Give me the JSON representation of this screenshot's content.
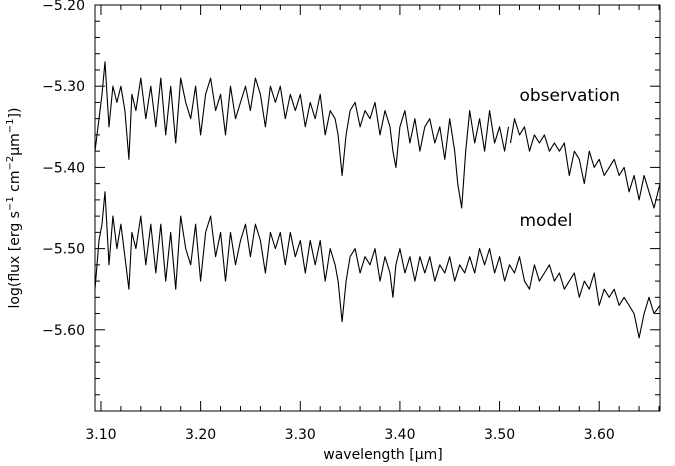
{
  "chart_data": {
    "type": "line",
    "xlabel": "wavelength [μm]",
    "ylabel_parts": [
      "log(flux [erg s",
      "−1",
      " cm",
      "−2",
      "μm",
      "−1",
      "])"
    ],
    "xlim": [
      3.094,
      3.661
    ],
    "ylim": [
      -5.7,
      -5.2
    ],
    "x_ticks": [
      3.1,
      3.2,
      3.3,
      3.4,
      3.5,
      3.6
    ],
    "x_tick_labels": [
      "3.10",
      "3.20",
      "3.30",
      "3.40",
      "3.50",
      "3.60"
    ],
    "y_ticks": [
      -5.2,
      -5.3,
      -5.4,
      -5.5,
      -5.6
    ],
    "y_tick_labels": [
      "−5.20",
      "−5.30",
      "−5.40",
      "−5.50",
      "−5.60"
    ],
    "grid": false,
    "legend": "none",
    "series": [
      {
        "name": "observation",
        "segments": [
          {
            "x": [
              3.094,
              3.098,
              3.101,
              3.104,
              3.108,
              3.112,
              3.116,
              3.12,
              3.124,
              3.128,
              3.131,
              3.135,
              3.14,
              3.145,
              3.15,
              3.155,
              3.16,
              3.165,
              3.17,
              3.175,
              3.18,
              3.185,
              3.19,
              3.195,
              3.2,
              3.205,
              3.21,
              3.215,
              3.22,
              3.225,
              3.23,
              3.235,
              3.24,
              3.245,
              3.25,
              3.255,
              3.26,
              3.265,
              3.27,
              3.275,
              3.28,
              3.285,
              3.29,
              3.295,
              3.3,
              3.305,
              3.31,
              3.315,
              3.32,
              3.325,
              3.33,
              3.335,
              3.338,
              3.342,
              3.346,
              3.35,
              3.355,
              3.36,
              3.365,
              3.37,
              3.375,
              3.38,
              3.385,
              3.39,
              3.393,
              3.396,
              3.4,
              3.405,
              3.41,
              3.415,
              3.42,
              3.425,
              3.43,
              3.435,
              3.44,
              3.445,
              3.45,
              3.455,
              3.458,
              3.462,
              3.466,
              3.47,
              3.475,
              3.48,
              3.485,
              3.49,
              3.495,
              3.5,
              3.505,
              3.509
            ],
            "y": [
              -5.38,
              -5.34,
              -5.31,
              -5.27,
              -5.35,
              -5.3,
              -5.32,
              -5.3,
              -5.33,
              -5.39,
              -5.31,
              -5.33,
              -5.29,
              -5.34,
              -5.3,
              -5.35,
              -5.29,
              -5.36,
              -5.3,
              -5.37,
              -5.29,
              -5.32,
              -5.34,
              -5.3,
              -5.36,
              -5.31,
              -5.29,
              -5.33,
              -5.31,
              -5.36,
              -5.3,
              -5.34,
              -5.32,
              -5.3,
              -5.33,
              -5.29,
              -5.31,
              -5.35,
              -5.3,
              -5.32,
              -5.3,
              -5.34,
              -5.31,
              -5.33,
              -5.31,
              -5.35,
              -5.32,
              -5.34,
              -5.31,
              -5.36,
              -5.33,
              -5.34,
              -5.36,
              -5.41,
              -5.36,
              -5.33,
              -5.32,
              -5.35,
              -5.33,
              -5.34,
              -5.32,
              -5.36,
              -5.33,
              -5.35,
              -5.38,
              -5.4,
              -5.35,
              -5.33,
              -5.37,
              -5.34,
              -5.38,
              -5.35,
              -5.34,
              -5.37,
              -5.35,
              -5.39,
              -5.34,
              -5.38,
              -5.42,
              -5.45,
              -5.38,
              -5.33,
              -5.37,
              -5.34,
              -5.38,
              -5.33,
              -5.37,
              -5.35,
              -5.38,
              -5.35
            ]
          },
          {
            "x": [
              3.511,
              3.515,
              3.52,
              3.525,
              3.53,
              3.535,
              3.54,
              3.545,
              3.55,
              3.555,
              3.56,
              3.565,
              3.57,
              3.575,
              3.58,
              3.585,
              3.59,
              3.595,
              3.6,
              3.605,
              3.61,
              3.615,
              3.62,
              3.625,
              3.63,
              3.635,
              3.64,
              3.645,
              3.65,
              3.655,
              3.661
            ],
            "y": [
              -5.37,
              -5.34,
              -5.36,
              -5.35,
              -5.38,
              -5.36,
              -5.37,
              -5.36,
              -5.38,
              -5.37,
              -5.38,
              -5.37,
              -5.41,
              -5.38,
              -5.39,
              -5.42,
              -5.38,
              -5.4,
              -5.39,
              -5.41,
              -5.4,
              -5.39,
              -5.41,
              -5.4,
              -5.43,
              -5.41,
              -5.44,
              -5.41,
              -5.43,
              -5.45,
              -5.42
            ]
          }
        ]
      },
      {
        "name": "model",
        "segments": [
          {
            "x": [
              3.094,
              3.098,
              3.101,
              3.104,
              3.108,
              3.112,
              3.116,
              3.12,
              3.124,
              3.128,
              3.131,
              3.135,
              3.14,
              3.145,
              3.15,
              3.155,
              3.16,
              3.165,
              3.17,
              3.175,
              3.18,
              3.185,
              3.19,
              3.195,
              3.2,
              3.205,
              3.21,
              3.215,
              3.22,
              3.225,
              3.23,
              3.235,
              3.24,
              3.245,
              3.25,
              3.255,
              3.26,
              3.265,
              3.27,
              3.275,
              3.28,
              3.285,
              3.29,
              3.295,
              3.3,
              3.305,
              3.31,
              3.315,
              3.32,
              3.325,
              3.33,
              3.335,
              3.338,
              3.342,
              3.346,
              3.35,
              3.355,
              3.36,
              3.365,
              3.37,
              3.375,
              3.38,
              3.385,
              3.39,
              3.393,
              3.396,
              3.4,
              3.405,
              3.41,
              3.415,
              3.42,
              3.425,
              3.43,
              3.435,
              3.44,
              3.445,
              3.45,
              3.455,
              3.46,
              3.465,
              3.47,
              3.475,
              3.48,
              3.485,
              3.49,
              3.495,
              3.5,
              3.505,
              3.51,
              3.515,
              3.52,
              3.525,
              3.53,
              3.535,
              3.54,
              3.545,
              3.55,
              3.555,
              3.56,
              3.565,
              3.57,
              3.575,
              3.58,
              3.585,
              3.59,
              3.595,
              3.6,
              3.605,
              3.61,
              3.615,
              3.62,
              3.625,
              3.63,
              3.635,
              3.64,
              3.645,
              3.65,
              3.655,
              3.661
            ],
            "y": [
              -5.55,
              -5.49,
              -5.47,
              -5.43,
              -5.52,
              -5.46,
              -5.5,
              -5.47,
              -5.51,
              -5.55,
              -5.48,
              -5.5,
              -5.46,
              -5.52,
              -5.47,
              -5.53,
              -5.47,
              -5.54,
              -5.48,
              -5.55,
              -5.46,
              -5.5,
              -5.52,
              -5.47,
              -5.54,
              -5.48,
              -5.46,
              -5.51,
              -5.48,
              -5.54,
              -5.48,
              -5.52,
              -5.49,
              -5.47,
              -5.51,
              -5.47,
              -5.49,
              -5.53,
              -5.48,
              -5.5,
              -5.48,
              -5.52,
              -5.48,
              -5.51,
              -5.49,
              -5.53,
              -5.49,
              -5.52,
              -5.49,
              -5.54,
              -5.5,
              -5.52,
              -5.54,
              -5.59,
              -5.54,
              -5.51,
              -5.5,
              -5.53,
              -5.51,
              -5.52,
              -5.5,
              -5.54,
              -5.51,
              -5.53,
              -5.56,
              -5.52,
              -5.5,
              -5.53,
              -5.51,
              -5.54,
              -5.51,
              -5.53,
              -5.51,
              -5.54,
              -5.52,
              -5.53,
              -5.51,
              -5.54,
              -5.52,
              -5.53,
              -5.51,
              -5.53,
              -5.5,
              -5.52,
              -5.5,
              -5.53,
              -5.51,
              -5.54,
              -5.52,
              -5.53,
              -5.51,
              -5.54,
              -5.55,
              -5.52,
              -5.54,
              -5.53,
              -5.52,
              -5.54,
              -5.53,
              -5.55,
              -5.54,
              -5.53,
              -5.56,
              -5.54,
              -5.55,
              -5.53,
              -5.57,
              -5.55,
              -5.56,
              -5.55,
              -5.57,
              -5.56,
              -5.57,
              -5.58,
              -5.61,
              -5.58,
              -5.56,
              -5.58,
              -5.57
            ]
          }
        ]
      }
    ],
    "annotations": [
      {
        "text": "observation",
        "x": 3.52,
        "y": -5.318
      },
      {
        "text": "model",
        "x": 3.52,
        "y": -5.472
      }
    ]
  }
}
